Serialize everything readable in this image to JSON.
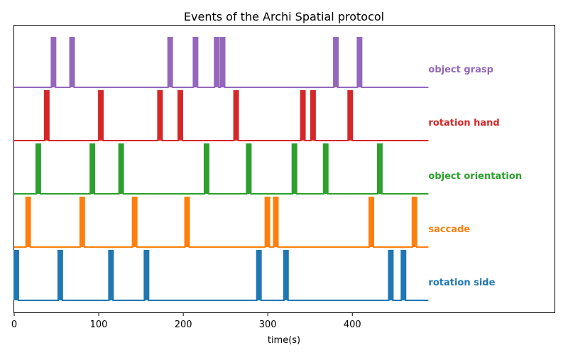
{
  "chart_data": {
    "type": "line",
    "title": "Events of the Archi Spatial protocol",
    "xlabel": "time(s)",
    "ylabel": "",
    "xlim": [
      0,
      640
    ],
    "x_range_drawn": [
      0,
      490
    ],
    "xticks": [
      0,
      100,
      200,
      300,
      400
    ],
    "grid": false,
    "legend": "labels at right end of each line",
    "pulse_width": 5,
    "series": [
      {
        "name": "rotation side",
        "color": "#1f77b4",
        "events": [
          0,
          52,
          112,
          154,
          287,
          319,
          443,
          458
        ]
      },
      {
        "name": "saccade",
        "color": "#ff7f0e",
        "events": [
          14,
          78,
          140,
          202,
          297,
          307,
          420,
          471
        ]
      },
      {
        "name": "object orientation",
        "color": "#2ca02c",
        "events": [
          26,
          90,
          124,
          225,
          275,
          329,
          366,
          430
        ]
      },
      {
        "name": "rotation hand",
        "color": "#d62728",
        "events": [
          36,
          100,
          170,
          194,
          260,
          339,
          351,
          395
        ]
      },
      {
        "name": "object grasp",
        "color": "#9467bd",
        "events": [
          44,
          66,
          182,
          212,
          237,
          244,
          378,
          406
        ]
      }
    ]
  }
}
